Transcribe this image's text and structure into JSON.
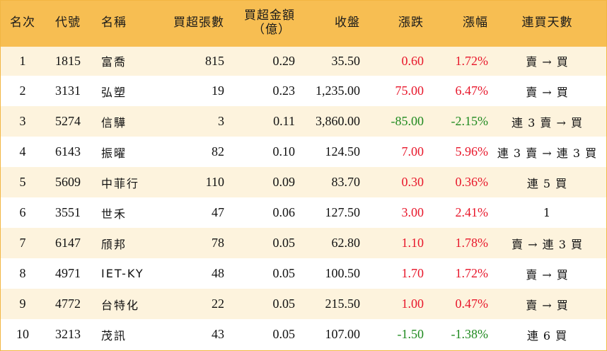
{
  "headers": {
    "rank": "名次",
    "code": "代號",
    "name": "名稱",
    "net_buy_lots": "買超張數",
    "net_buy_amount_line1": "買超金額",
    "net_buy_amount_line2": "（億）",
    "close": "收盤",
    "change": "漲跌",
    "change_pct": "漲幅",
    "consecutive_days": "連買天數"
  },
  "rows": [
    {
      "rank": "1",
      "code": "1815",
      "name": "富喬",
      "lots": "815",
      "amount": "0.29",
      "close": "35.50",
      "change": "0.60",
      "pct": "1.72%",
      "streak": "賣 → 買",
      "dir": "up"
    },
    {
      "rank": "2",
      "code": "3131",
      "name": "弘塑",
      "lots": "19",
      "amount": "0.23",
      "close": "1,235.00",
      "change": "75.00",
      "pct": "6.47%",
      "streak": "賣 → 買",
      "dir": "up"
    },
    {
      "rank": "3",
      "code": "5274",
      "name": "信驊",
      "lots": "3",
      "amount": "0.11",
      "close": "3,860.00",
      "change": "-85.00",
      "pct": "-2.15%",
      "streak": "連 3 賣 → 買",
      "dir": "down"
    },
    {
      "rank": "4",
      "code": "6143",
      "name": "振曜",
      "lots": "82",
      "amount": "0.10",
      "close": "124.50",
      "change": "7.00",
      "pct": "5.96%",
      "streak": "連 3 賣 → 連 3 買",
      "dir": "up"
    },
    {
      "rank": "5",
      "code": "5609",
      "name": "中菲行",
      "lots": "110",
      "amount": "0.09",
      "close": "83.70",
      "change": "0.30",
      "pct": "0.36%",
      "streak": "連 5 買",
      "dir": "up"
    },
    {
      "rank": "6",
      "code": "3551",
      "name": "世禾",
      "lots": "47",
      "amount": "0.06",
      "close": "127.50",
      "change": "3.00",
      "pct": "2.41%",
      "streak": "1",
      "dir": "up"
    },
    {
      "rank": "7",
      "code": "6147",
      "name": "頎邦",
      "lots": "78",
      "amount": "0.05",
      "close": "62.80",
      "change": "1.10",
      "pct": "1.78%",
      "streak": "賣 → 連 3 買",
      "dir": "up"
    },
    {
      "rank": "8",
      "code": "4971",
      "name": "IET-KY",
      "lots": "48",
      "amount": "0.05",
      "close": "100.50",
      "change": "1.70",
      "pct": "1.72%",
      "streak": "賣 → 買",
      "dir": "up"
    },
    {
      "rank": "9",
      "code": "4772",
      "name": "台特化",
      "lots": "22",
      "amount": "0.05",
      "close": "215.50",
      "change": "1.00",
      "pct": "0.47%",
      "streak": "賣 → 買",
      "dir": "up"
    },
    {
      "rank": "10",
      "code": "3213",
      "name": "茂訊",
      "lots": "43",
      "amount": "0.05",
      "close": "107.00",
      "change": "-1.50",
      "pct": "-1.38%",
      "streak": "連 6 買",
      "dir": "down"
    }
  ],
  "colors": {
    "header_bg": "#f7be52",
    "odd_row_bg": "#fdf3dd",
    "even_row_bg": "#ffffff",
    "up": "#e8172b",
    "down": "#1f8a1f",
    "border": "#f2b643"
  }
}
